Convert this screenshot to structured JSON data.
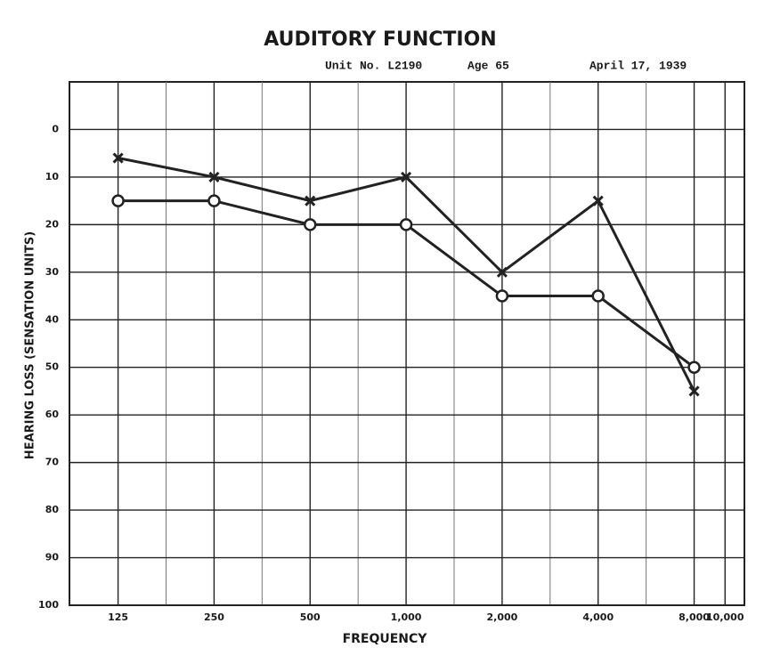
{
  "chart_data": {
    "type": "line",
    "title": "AUDITORY FUNCTION",
    "subtitle": [
      "Unit No. L2190",
      "Age 65",
      "April 17, 1939"
    ],
    "xlabel": "FREQUENCY",
    "ylabel": "HEARING LOSS (SENSATION UNITS)",
    "xscale": "log",
    "xlim": [
      88,
      11500
    ],
    "xticks": [
      125,
      250,
      500,
      {
        "value": 1000,
        "label": "1,000"
      },
      {
        "value": 2000,
        "label": "2,000"
      },
      {
        "value": 4000,
        "label": "4,000"
      },
      {
        "value": 8000,
        "label": "8,000"
      },
      {
        "value": 10000,
        "label": "10,000"
      }
    ],
    "ylim": [
      100,
      -10
    ],
    "yticks": [
      0,
      10,
      20,
      30,
      40,
      50,
      60,
      70,
      80,
      90,
      100
    ],
    "grid": true,
    "x": [
      125,
      250,
      500,
      1000,
      2000,
      4000,
      8000
    ],
    "series": [
      {
        "marker": "x",
        "color": "#222222",
        "values": [
          6,
          10,
          15,
          10,
          30,
          15,
          55
        ]
      },
      {
        "marker": "o",
        "color": "#222222",
        "values": [
          15,
          15,
          20,
          20,
          35,
          35,
          50
        ]
      }
    ]
  }
}
